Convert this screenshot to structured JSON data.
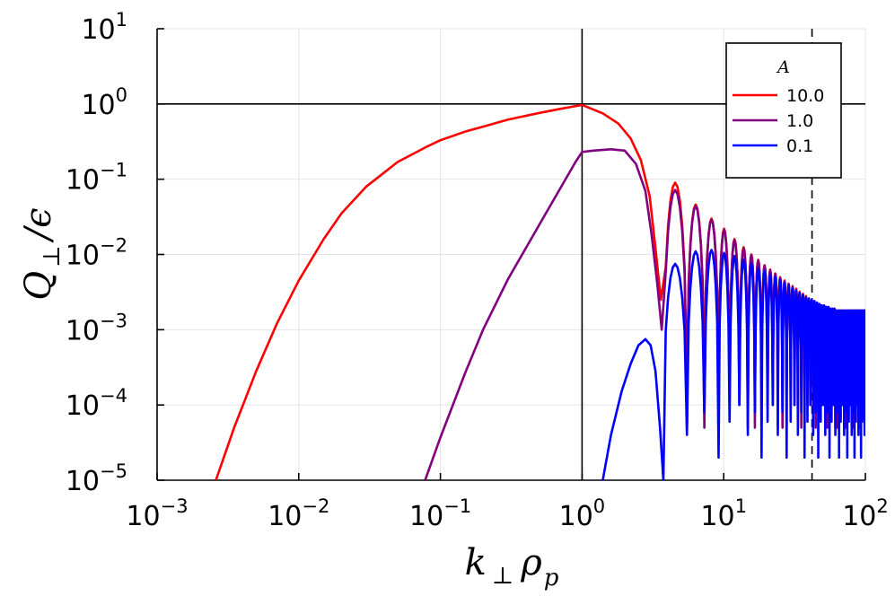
{
  "chart_data": {
    "type": "line",
    "xlabel": {
      "main": "k",
      "sub1": "⊥",
      "mid": "ρ",
      "sub2": "p"
    },
    "ylabel": {
      "main": "Q",
      "sub": "⊥",
      "tail": "/ϵ"
    },
    "x_scale": "log",
    "y_scale": "log",
    "xlim": [
      0.001,
      100
    ],
    "ylim": [
      1e-05,
      10
    ],
    "x_ticks": [
      {
        "value": 0.001,
        "base": "10",
        "exp": "−3"
      },
      {
        "value": 0.01,
        "base": "10",
        "exp": "−2"
      },
      {
        "value": 0.1,
        "base": "10",
        "exp": "−1"
      },
      {
        "value": 1,
        "base": "10",
        "exp": "0"
      },
      {
        "value": 10,
        "base": "10",
        "exp": "1"
      },
      {
        "value": 100,
        "base": "10",
        "exp": "2"
      }
    ],
    "y_ticks": [
      {
        "value": 1e-05,
        "base": "10",
        "exp": "−5"
      },
      {
        "value": 0.0001,
        "base": "10",
        "exp": "−4"
      },
      {
        "value": 0.001,
        "base": "10",
        "exp": "−3"
      },
      {
        "value": 0.01,
        "base": "10",
        "exp": "−2"
      },
      {
        "value": 0.1,
        "base": "10",
        "exp": "−1"
      },
      {
        "value": 1,
        "base": "10",
        "exp": "0"
      },
      {
        "value": 10,
        "base": "10",
        "exp": "1"
      }
    ],
    "grid": true,
    "reference_lines": {
      "vertical_solid": 1,
      "horizontal_solid": 1,
      "vertical_dashed": 42
    },
    "legend": {
      "title": "A",
      "position": "top-right"
    },
    "series": [
      {
        "name": "10.0",
        "color": "#ff0000",
        "x": [
          0.0026,
          0.0035,
          0.005,
          0.007,
          0.01,
          0.015,
          0.02,
          0.03,
          0.05,
          0.08,
          0.1,
          0.15,
          0.2,
          0.3,
          0.5,
          0.7,
          1.0,
          1.4,
          1.8,
          2.2,
          2.6,
          3.0,
          3.3,
          3.6
        ],
        "y": [
          1e-05,
          5e-05,
          0.00028,
          0.0012,
          0.0045,
          0.016,
          0.035,
          0.08,
          0.17,
          0.27,
          0.33,
          0.43,
          0.5,
          0.62,
          0.76,
          0.86,
          0.97,
          0.75,
          0.55,
          0.35,
          0.18,
          0.06,
          0.012,
          0.0025
        ]
      },
      {
        "name": "1.0",
        "color": "#800080",
        "x": [
          0.078,
          0.1,
          0.15,
          0.2,
          0.3,
          0.5,
          0.7,
          0.9,
          1.0,
          1.2,
          1.6,
          2.0,
          2.4,
          2.8,
          3.1,
          3.4,
          3.65
        ],
        "y": [
          1e-05,
          3.7e-05,
          0.00027,
          0.001,
          0.0047,
          0.025,
          0.075,
          0.17,
          0.23,
          0.24,
          0.25,
          0.24,
          0.16,
          0.07,
          0.018,
          0.004,
          0.001
        ]
      },
      {
        "name": "0.1",
        "color": "#0000ff",
        "x": [
          1.4,
          1.6,
          1.9,
          2.2,
          2.5,
          2.8,
          3.05,
          3.3,
          3.55,
          3.75
        ],
        "y": [
          1e-05,
          4e-05,
          0.00015,
          0.00035,
          0.00062,
          0.00075,
          0.00062,
          0.00028,
          5e-05,
          1e-05
        ]
      }
    ],
    "oscillation": {
      "x_start": 3.75,
      "x_end": 100,
      "nulls": [
        3.75,
        5.5,
        7.3,
        9.2,
        11.0,
        12.9,
        14.8,
        16.6,
        18.5,
        20.4,
        22.2,
        24.1,
        26.0,
        27.8,
        29.7,
        31.6,
        33.4,
        35.3,
        37.2,
        39.0,
        40.9,
        42.8,
        44.6,
        46.5,
        48.4,
        50.2,
        52.1,
        54.0,
        55.8,
        57.7,
        59.6,
        61.4,
        63.3,
        65.2,
        67.0,
        68.9,
        70.8,
        72.6,
        74.5,
        76.4,
        78.2,
        80.1,
        82.0,
        83.8,
        85.7,
        87.6,
        89.4,
        91.3,
        93.2,
        95.0,
        96.9,
        98.8,
        100
      ],
      "peaks": {
        "10.0": [
          0.09,
          0.046,
          0.03,
          0.022,
          0.016,
          0.0125,
          0.01,
          0.0085,
          0.0072,
          0.0063,
          0.0056,
          0.005,
          0.0045,
          0.0041,
          0.0038,
          0.0035,
          0.0032,
          0.003,
          0.0028,
          0.0026,
          0.0025,
          0.0024,
          0.0023,
          0.0022,
          0.0021,
          0.0021,
          0.002,
          0.002,
          0.0019,
          0.0019,
          0.0019,
          0.0018,
          0.0018,
          0.0018,
          0.0018,
          0.0018,
          0.0018,
          0.0018,
          0.0018,
          0.0018,
          0.0018,
          0.0018,
          0.0018,
          0.0018,
          0.0018,
          0.0018,
          0.0018,
          0.0018,
          0.0018,
          0.0018,
          0.0018,
          0.0018
        ],
        "1.0": [
          0.072,
          0.044,
          0.029,
          0.021,
          0.0155,
          0.012,
          0.0098,
          0.0083,
          0.0071,
          0.0062,
          0.0055,
          0.0049,
          0.0044,
          0.004,
          0.0037,
          0.0034,
          0.0031,
          0.0029,
          0.0027,
          0.0026,
          0.0025,
          0.0024,
          0.0023,
          0.0022,
          0.0021,
          0.0021,
          0.002,
          0.002,
          0.0019,
          0.0019,
          0.0019,
          0.0018,
          0.0018,
          0.0018,
          0.0018,
          0.0018,
          0.0018,
          0.0018,
          0.0018,
          0.0018,
          0.0018,
          0.0018,
          0.0018,
          0.0018,
          0.0018,
          0.0018,
          0.0018,
          0.0018,
          0.0018,
          0.0018,
          0.0018,
          0.0018
        ],
        "0.1": [
          0.0075,
          0.011,
          0.0115,
          0.0105,
          0.0095,
          0.0085,
          0.0075,
          0.0066,
          0.006,
          0.0054,
          0.005,
          0.0046,
          0.0042,
          0.0039,
          0.0036,
          0.0033,
          0.0031,
          0.0029,
          0.0027,
          0.0026,
          0.0025,
          0.0024,
          0.0023,
          0.0022,
          0.0021,
          0.0021,
          0.002,
          0.002,
          0.0019,
          0.0019,
          0.0019,
          0.0018,
          0.0018,
          0.0018,
          0.0018,
          0.0018,
          0.0018,
          0.0018,
          0.0018,
          0.0018,
          0.0018,
          0.0018,
          0.0018,
          0.0018,
          0.0018,
          0.0018,
          0.0018,
          0.0018,
          0.0018,
          0.0018,
          0.0018,
          0.0018
        ]
      },
      "null_depth": {
        "10.0": 5e-05,
        "1.0": 5e-05,
        "0.1": 2e-05
      }
    }
  }
}
